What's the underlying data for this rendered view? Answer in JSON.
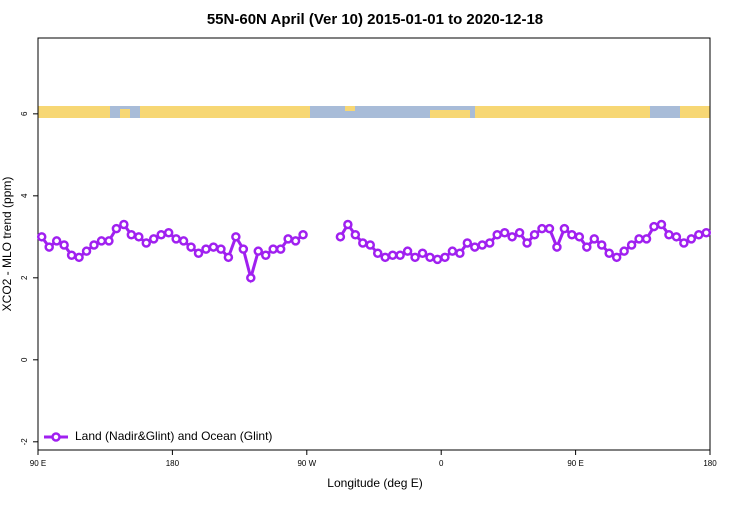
{
  "chart_data": {
    "type": "line",
    "title": "55N-60N April (Ver 10)   2015-01-01 to 2020-12-18",
    "x_label": "Longitude (deg E)",
    "y_label": "XCO2 - MLO trend (ppm)",
    "xlim": [
      90,
      540
    ],
    "ylim": [
      -2.2,
      7.85
    ],
    "xticks": [
      {
        "value": 90,
        "label": "90 E"
      },
      {
        "value": 180,
        "label": "180"
      },
      {
        "value": 270,
        "label": "90 W"
      },
      {
        "value": 360,
        "label": "0"
      },
      {
        "value": 450,
        "label": "90 E"
      },
      {
        "value": 540,
        "label": "180"
      }
    ],
    "yticks": [
      -2,
      0,
      2,
      4,
      6
    ],
    "legend": "bottom-left",
    "x": [
      92.5,
      97.5,
      102.5,
      107.5,
      112.5,
      117.5,
      122.5,
      127.5,
      132.5,
      137.5,
      142.5,
      147.5,
      152.5,
      157.5,
      162.5,
      167.5,
      172.5,
      177.5,
      182.5,
      187.5,
      192.5,
      197.5,
      202.5,
      207.5,
      212.5,
      217.5,
      222.5,
      227.5,
      232.5,
      237.5,
      242.5,
      247.5,
      252.5,
      257.5,
      262.5,
      267.5,
      272.5,
      277.5,
      282.5,
      287.5,
      292.5,
      297.5,
      302.5,
      307.5,
      312.5,
      317.5,
      322.5,
      327.5,
      332.5,
      337.5,
      342.5,
      347.5,
      352.5,
      357.5,
      362.5,
      367.5,
      372.5,
      377.5,
      382.5,
      387.5,
      392.5,
      397.5,
      402.5,
      407.5,
      412.5,
      417.5,
      422.5,
      427.5,
      432.5,
      437.5,
      442.5,
      447.5,
      452.5,
      457.5,
      462.5,
      467.5,
      472.5,
      477.5,
      482.5,
      487.5,
      492.5,
      497.5,
      502.5,
      507.5,
      512.5,
      517.5,
      522.5,
      527.5,
      532.5,
      537.5
    ],
    "series": [
      {
        "name": "Land (Nadir&Glint) and Ocean (Glint)",
        "color": "#a020f0",
        "values": [
          3.0,
          2.75,
          2.9,
          2.8,
          2.55,
          2.5,
          2.65,
          2.8,
          2.9,
          2.9,
          3.2,
          3.3,
          3.05,
          3.0,
          2.85,
          2.95,
          3.05,
          3.1,
          2.95,
          2.9,
          2.75,
          2.6,
          2.7,
          2.75,
          2.7,
          2.5,
          3.0,
          2.7,
          2.0,
          2.65,
          2.55,
          2.7,
          2.7,
          2.95,
          2.9,
          3.05,
          null,
          null,
          null,
          null,
          3.0,
          3.3,
          3.05,
          2.85,
          2.8,
          2.6,
          2.5,
          2.55,
          2.55,
          2.65,
          2.5,
          2.6,
          2.5,
          2.45,
          2.5,
          2.65,
          2.6,
          2.85,
          2.75,
          2.8,
          2.85,
          3.05,
          3.1,
          3.0,
          3.1,
          2.85,
          3.05,
          3.2,
          3.2,
          2.75,
          3.2,
          3.05,
          3.0,
          2.75,
          2.95,
          2.8,
          2.6,
          2.5,
          2.65,
          2.8,
          2.95,
          2.95,
          3.25,
          3.3,
          3.05,
          3.0,
          2.85,
          2.95,
          3.05,
          3.1
        ]
      }
    ]
  }
}
